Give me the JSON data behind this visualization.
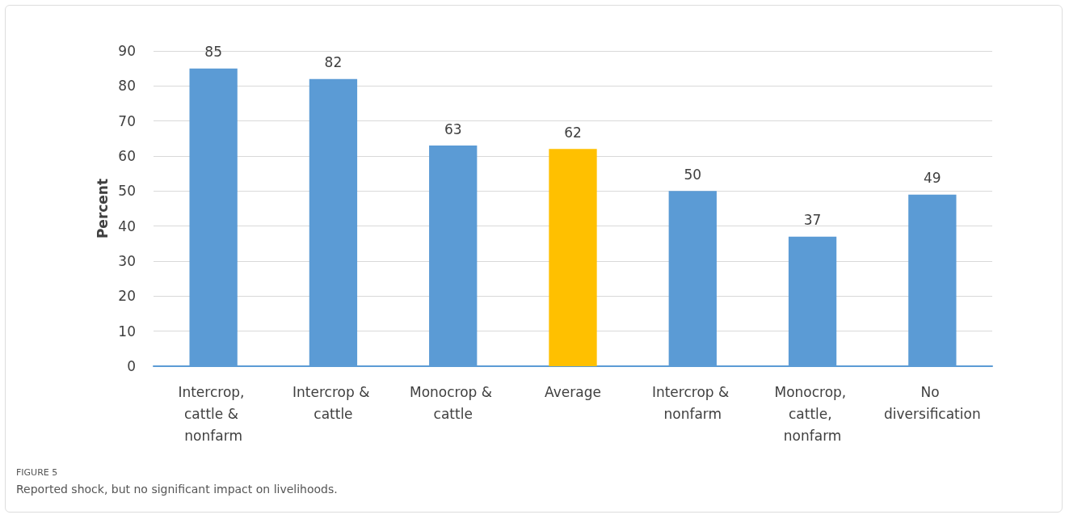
{
  "chart_data": {
    "type": "bar",
    "ylabel": "Percent",
    "categories": [
      "Intercrop, cattle & nonfarm",
      "Intercrop & cattle",
      "Monocrop & cattle",
      "Average",
      "Intercrop & nonfarm",
      "Monocrop, cattle, nonfarm",
      "No diversification"
    ],
    "values": [
      85,
      82,
      63,
      62,
      50,
      37,
      49
    ],
    "colors": [
      "#5b9bd5",
      "#5b9bd5",
      "#5b9bd5",
      "#ffc000",
      "#5b9bd5",
      "#5b9bd5",
      "#5b9bd5"
    ],
    "ylim": [
      0,
      90
    ],
    "yticks": [
      0,
      10,
      20,
      30,
      40,
      50,
      60,
      70,
      80,
      90
    ],
    "grid": "y",
    "data_labels": true,
    "annotations": [
      "FIGURE 5",
      "Reported shock, but no significant impact on livelihoods."
    ]
  }
}
